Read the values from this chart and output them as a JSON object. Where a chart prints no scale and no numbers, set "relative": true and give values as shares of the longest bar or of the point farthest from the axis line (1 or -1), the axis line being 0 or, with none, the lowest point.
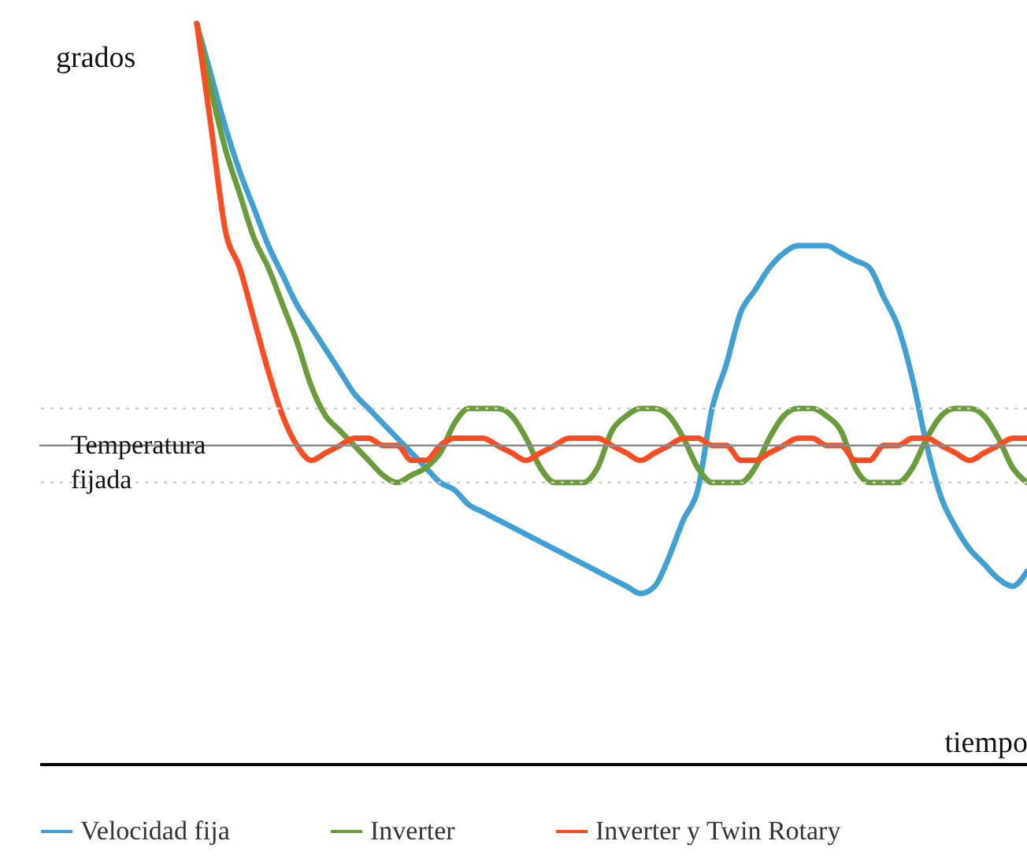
{
  "chart_data": {
    "type": "line",
    "relative": true,
    "ylabel": "grados",
    "xlabel": "tiempo",
    "legend": "bottom",
    "categories": [
      null,
      null,
      null,
      null,
      null,
      null,
      null,
      null,
      null,
      null,
      null,
      null,
      null,
      null,
      null,
      null,
      null,
      null,
      null,
      null,
      null,
      null,
      null,
      null,
      null,
      null,
      null,
      null,
      null,
      null,
      null,
      null,
      null,
      null,
      null,
      null,
      null,
      null,
      null,
      null,
      null,
      null,
      null,
      null,
      null,
      null,
      null,
      null,
      null,
      null,
      null,
      null,
      null,
      null,
      null,
      null,
      null,
      null,
      null,
      null,
      null,
      null,
      null,
      null,
      null,
      null,
      null,
      null,
      null,
      null
    ],
    "series": [
      {
        "name": "Velocidad fija",
        "color": "#3fa0d6",
        "values": [
          null,
          null,
          null,
          null,
          null,
          null,
          null,
          null,
          null,
          null,
          null,
          1.0,
          0.93,
          0.86,
          0.8,
          0.75,
          0.7,
          0.66,
          0.62,
          0.59,
          0.56,
          0.53,
          0.5,
          0.48,
          0.46,
          0.44,
          0.42,
          0.4,
          0.38,
          0.37,
          0.35,
          0.34,
          0.33,
          0.32,
          0.31,
          0.3,
          0.29,
          0.28,
          0.27,
          0.26,
          0.25,
          0.24,
          0.23,
          0.24,
          0.28,
          0.33,
          0.37,
          0.48,
          0.54,
          0.61,
          0.64,
          0.67,
          0.69,
          0.7,
          0.7,
          0.7,
          0.69,
          0.68,
          0.67,
          0.63,
          0.59,
          0.52,
          0.43,
          0.36,
          0.32,
          0.29,
          0.27,
          0.25,
          0.24,
          0.26
        ]
      },
      {
        "name": "Inverter",
        "color": "#6a9d3a",
        "values": [
          null,
          null,
          null,
          null,
          null,
          null,
          null,
          null,
          null,
          null,
          null,
          1.0,
          0.91,
          0.83,
          0.77,
          0.71,
          0.67,
          0.62,
          0.57,
          0.51,
          0.47,
          0.45,
          0.43,
          0.41,
          0.39,
          0.38,
          0.39,
          0.4,
          0.42,
          0.46,
          0.48,
          0.48,
          0.48,
          0.47,
          0.44,
          0.4,
          0.38,
          0.38,
          0.38,
          0.4,
          0.45,
          0.47,
          0.48,
          0.48,
          0.47,
          0.44,
          0.4,
          0.38,
          0.38,
          0.38,
          0.4,
          0.44,
          0.47,
          0.48,
          0.48,
          0.47,
          0.45,
          0.4,
          0.38,
          0.38,
          0.38,
          0.4,
          0.44,
          0.47,
          0.48,
          0.48,
          0.47,
          0.44,
          0.4,
          0.38
        ]
      },
      {
        "name": "Inverter y Twin Rotary",
        "color": "#ff4b1f",
        "values": [
          null,
          null,
          null,
          null,
          null,
          null,
          null,
          null,
          null,
          null,
          null,
          1.0,
          0.86,
          0.72,
          0.67,
          0.6,
          0.53,
          0.47,
          0.43,
          0.41,
          0.42,
          0.43,
          0.44,
          0.44,
          0.43,
          0.43,
          0.41,
          0.41,
          0.43,
          0.44,
          0.44,
          0.44,
          0.43,
          0.42,
          0.41,
          0.42,
          0.43,
          0.44,
          0.44,
          0.44,
          0.43,
          0.42,
          0.41,
          0.42,
          0.43,
          0.44,
          0.44,
          0.43,
          0.43,
          0.41,
          0.41,
          0.42,
          0.43,
          0.44,
          0.44,
          0.43,
          0.43,
          0.41,
          0.41,
          0.43,
          0.43,
          0.44,
          0.44,
          0.43,
          0.42,
          0.41,
          0.42,
          0.43,
          0.44,
          0.44
        ]
      }
    ],
    "ref_lines": [
      {
        "axis": "y",
        "value": 0.43,
        "label": "Temperatura fijada",
        "color": "#8c8c8c",
        "line_style": "solid"
      },
      {
        "axis": "y",
        "value": 0.48,
        "label": null,
        "color": "#cccccc",
        "line_style": "dotted"
      },
      {
        "axis": "y",
        "value": 0.38,
        "label": null,
        "color": "#cccccc",
        "line_style": "dotted"
      }
    ]
  }
}
